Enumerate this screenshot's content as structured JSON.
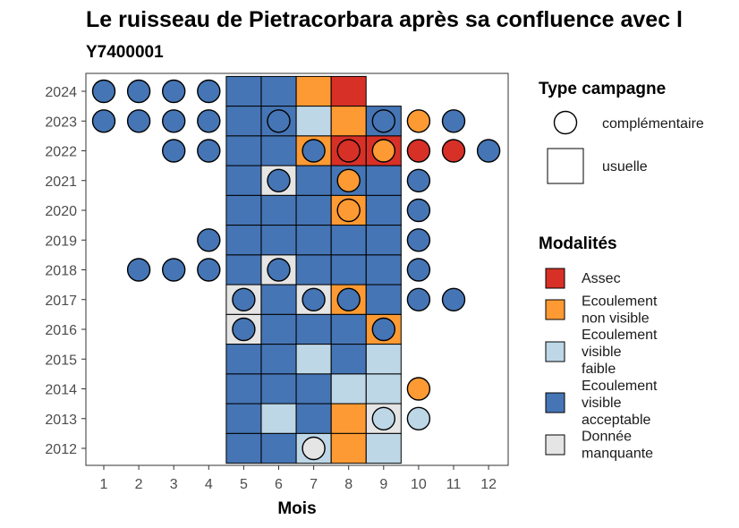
{
  "chart_data": {
    "type": "heatmap",
    "title": "Le ruisseau de Pietracorbara après sa confluence avec l",
    "subtitle": "Y7400001",
    "xlabel": "Mois",
    "ylabel": "",
    "x_ticks": [
      1,
      2,
      3,
      4,
      5,
      6,
      7,
      8,
      9,
      10,
      11,
      12
    ],
    "y_ticks": [
      2012,
      2013,
      2014,
      2015,
      2016,
      2017,
      2018,
      2019,
      2020,
      2021,
      2022,
      2023,
      2024
    ],
    "xlim": [
      0.5,
      12.5
    ],
    "ylim": [
      2011.4,
      2024.6
    ],
    "grid": false,
    "modalities": [
      {
        "key": "assec",
        "label": "Assec",
        "color": "#D73027"
      },
      {
        "key": "ecoulement_non_visible",
        "label": "Ecoulement\nnon visible",
        "color": "#FD9A33"
      },
      {
        "key": "ecoulement_visible_faible",
        "label": "Ecoulement\nvisible\nfaible",
        "color": "#BDD7E7"
      },
      {
        "key": "ecoulement_visible_acceptable",
        "label": "Ecoulement\nvisible\nacceptable",
        "color": "#4575B4"
      },
      {
        "key": "donnee_manquante",
        "label": "Donnée\nmanquante",
        "color": "#E5E5E5"
      }
    ],
    "campaign_types": [
      {
        "key": "complementaire",
        "label": "complémentaire",
        "shape": "circle"
      },
      {
        "key": "usuelle",
        "label": "usuelle",
        "shape": "square"
      }
    ],
    "usuelle": [
      {
        "year": 2024,
        "month": 5,
        "m": "ecoulement_visible_acceptable"
      },
      {
        "year": 2024,
        "month": 6,
        "m": "ecoulement_visible_acceptable"
      },
      {
        "year": 2024,
        "month": 7,
        "m": "ecoulement_non_visible"
      },
      {
        "year": 2024,
        "month": 8,
        "m": "assec"
      },
      {
        "year": 2023,
        "month": 5,
        "m": "ecoulement_visible_acceptable"
      },
      {
        "year": 2023,
        "month": 6,
        "m": "ecoulement_visible_acceptable"
      },
      {
        "year": 2023,
        "month": 7,
        "m": "ecoulement_visible_faible"
      },
      {
        "year": 2023,
        "month": 8,
        "m": "ecoulement_non_visible"
      },
      {
        "year": 2023,
        "month": 9,
        "m": "ecoulement_visible_acceptable"
      },
      {
        "year": 2022,
        "month": 5,
        "m": "ecoulement_visible_acceptable"
      },
      {
        "year": 2022,
        "month": 6,
        "m": "ecoulement_visible_acceptable"
      },
      {
        "year": 2022,
        "month": 7,
        "m": "ecoulement_non_visible"
      },
      {
        "year": 2022,
        "month": 8,
        "m": "assec"
      },
      {
        "year": 2022,
        "month": 9,
        "m": "assec"
      },
      {
        "year": 2021,
        "month": 5,
        "m": "ecoulement_visible_acceptable"
      },
      {
        "year": 2021,
        "month": 6,
        "m": "donnee_manquante"
      },
      {
        "year": 2021,
        "month": 7,
        "m": "ecoulement_visible_acceptable"
      },
      {
        "year": 2021,
        "month": 8,
        "m": "ecoulement_visible_acceptable"
      },
      {
        "year": 2021,
        "month": 9,
        "m": "ecoulement_visible_acceptable"
      },
      {
        "year": 2020,
        "month": 5,
        "m": "ecoulement_visible_acceptable"
      },
      {
        "year": 2020,
        "month": 6,
        "m": "ecoulement_visible_acceptable"
      },
      {
        "year": 2020,
        "month": 7,
        "m": "ecoulement_visible_acceptable"
      },
      {
        "year": 2020,
        "month": 8,
        "m": "ecoulement_non_visible"
      },
      {
        "year": 2020,
        "month": 9,
        "m": "ecoulement_visible_acceptable"
      },
      {
        "year": 2019,
        "month": 5,
        "m": "ecoulement_visible_acceptable"
      },
      {
        "year": 2019,
        "month": 6,
        "m": "ecoulement_visible_acceptable"
      },
      {
        "year": 2019,
        "month": 7,
        "m": "ecoulement_visible_acceptable"
      },
      {
        "year": 2019,
        "month": 8,
        "m": "ecoulement_visible_acceptable"
      },
      {
        "year": 2019,
        "month": 9,
        "m": "ecoulement_visible_acceptable"
      },
      {
        "year": 2018,
        "month": 5,
        "m": "ecoulement_visible_acceptable"
      },
      {
        "year": 2018,
        "month": 6,
        "m": "donnee_manquante"
      },
      {
        "year": 2018,
        "month": 7,
        "m": "ecoulement_visible_acceptable"
      },
      {
        "year": 2018,
        "month": 8,
        "m": "ecoulement_visible_acceptable"
      },
      {
        "year": 2018,
        "month": 9,
        "m": "ecoulement_visible_acceptable"
      },
      {
        "year": 2017,
        "month": 5,
        "m": "donnee_manquante"
      },
      {
        "year": 2017,
        "month": 6,
        "m": "ecoulement_visible_acceptable"
      },
      {
        "year": 2017,
        "month": 7,
        "m": "donnee_manquante"
      },
      {
        "year": 2017,
        "month": 8,
        "m": "ecoulement_non_visible"
      },
      {
        "year": 2017,
        "month": 9,
        "m": "ecoulement_visible_acceptable"
      },
      {
        "year": 2016,
        "month": 5,
        "m": "donnee_manquante"
      },
      {
        "year": 2016,
        "month": 6,
        "m": "ecoulement_visible_acceptable"
      },
      {
        "year": 2016,
        "month": 7,
        "m": "ecoulement_visible_acceptable"
      },
      {
        "year": 2016,
        "month": 8,
        "m": "ecoulement_visible_acceptable"
      },
      {
        "year": 2016,
        "month": 9,
        "m": "ecoulement_non_visible"
      },
      {
        "year": 2015,
        "month": 5,
        "m": "ecoulement_visible_acceptable"
      },
      {
        "year": 2015,
        "month": 6,
        "m": "ecoulement_visible_acceptable"
      },
      {
        "year": 2015,
        "month": 7,
        "m": "ecoulement_visible_faible"
      },
      {
        "year": 2015,
        "month": 8,
        "m": "ecoulement_visible_acceptable"
      },
      {
        "year": 2015,
        "month": 9,
        "m": "ecoulement_visible_faible"
      },
      {
        "year": 2014,
        "month": 5,
        "m": "ecoulement_visible_acceptable"
      },
      {
        "year": 2014,
        "month": 6,
        "m": "ecoulement_visible_acceptable"
      },
      {
        "year": 2014,
        "month": 7,
        "m": "ecoulement_visible_acceptable"
      },
      {
        "year": 2014,
        "month": 8,
        "m": "ecoulement_visible_faible"
      },
      {
        "year": 2014,
        "month": 9,
        "m": "ecoulement_visible_faible"
      },
      {
        "year": 2013,
        "month": 5,
        "m": "ecoulement_visible_acceptable"
      },
      {
        "year": 2013,
        "month": 6,
        "m": "ecoulement_visible_faible"
      },
      {
        "year": 2013,
        "month": 7,
        "m": "ecoulement_visible_acceptable"
      },
      {
        "year": 2013,
        "month": 8,
        "m": "ecoulement_non_visible"
      },
      {
        "year": 2013,
        "month": 9,
        "m": "donnee_manquante"
      },
      {
        "year": 2012,
        "month": 5,
        "m": "ecoulement_visible_acceptable"
      },
      {
        "year": 2012,
        "month": 6,
        "m": "ecoulement_visible_acceptable"
      },
      {
        "year": 2012,
        "month": 7,
        "m": "ecoulement_visible_faible"
      },
      {
        "year": 2012,
        "month": 8,
        "m": "ecoulement_non_visible"
      },
      {
        "year": 2012,
        "month": 9,
        "m": "ecoulement_visible_faible"
      }
    ],
    "complementaire": [
      {
        "year": 2024,
        "month": 1,
        "m": "ecoulement_visible_acceptable"
      },
      {
        "year": 2024,
        "month": 2,
        "m": "ecoulement_visible_acceptable"
      },
      {
        "year": 2024,
        "month": 3,
        "m": "ecoulement_visible_acceptable"
      },
      {
        "year": 2024,
        "month": 4,
        "m": "ecoulement_visible_acceptable"
      },
      {
        "year": 2023,
        "month": 1,
        "m": "ecoulement_visible_acceptable"
      },
      {
        "year": 2023,
        "month": 2,
        "m": "ecoulement_visible_acceptable"
      },
      {
        "year": 2023,
        "month": 3,
        "m": "ecoulement_visible_acceptable"
      },
      {
        "year": 2023,
        "month": 4,
        "m": "ecoulement_visible_acceptable"
      },
      {
        "year": 2023,
        "month": 6,
        "m": "ecoulement_visible_acceptable"
      },
      {
        "year": 2023,
        "month": 9,
        "m": "ecoulement_visible_acceptable"
      },
      {
        "year": 2023,
        "month": 10,
        "m": "ecoulement_non_visible"
      },
      {
        "year": 2023,
        "month": 11,
        "m": "ecoulement_visible_acceptable"
      },
      {
        "year": 2022,
        "month": 3,
        "m": "ecoulement_visible_acceptable"
      },
      {
        "year": 2022,
        "month": 4,
        "m": "ecoulement_visible_acceptable"
      },
      {
        "year": 2022,
        "month": 7,
        "m": "ecoulement_visible_acceptable"
      },
      {
        "year": 2022,
        "month": 8,
        "m": "assec"
      },
      {
        "year": 2022,
        "month": 9,
        "m": "ecoulement_non_visible"
      },
      {
        "year": 2022,
        "month": 10,
        "m": "assec"
      },
      {
        "year": 2022,
        "month": 11,
        "m": "assec"
      },
      {
        "year": 2022,
        "month": 12,
        "m": "ecoulement_visible_acceptable"
      },
      {
        "year": 2021,
        "month": 6,
        "m": "ecoulement_visible_acceptable"
      },
      {
        "year": 2021,
        "month": 8,
        "m": "ecoulement_non_visible"
      },
      {
        "year": 2021,
        "month": 10,
        "m": "ecoulement_visible_acceptable"
      },
      {
        "year": 2020,
        "month": 8,
        "m": "ecoulement_non_visible"
      },
      {
        "year": 2020,
        "month": 10,
        "m": "ecoulement_visible_acceptable"
      },
      {
        "year": 2019,
        "month": 4,
        "m": "ecoulement_visible_acceptable"
      },
      {
        "year": 2019,
        "month": 10,
        "m": "ecoulement_visible_acceptable"
      },
      {
        "year": 2018,
        "month": 2,
        "m": "ecoulement_visible_acceptable"
      },
      {
        "year": 2018,
        "month": 3,
        "m": "ecoulement_visible_acceptable"
      },
      {
        "year": 2018,
        "month": 4,
        "m": "ecoulement_visible_acceptable"
      },
      {
        "year": 2018,
        "month": 6,
        "m": "ecoulement_visible_acceptable"
      },
      {
        "year": 2018,
        "month": 10,
        "m": "ecoulement_visible_acceptable"
      },
      {
        "year": 2017,
        "month": 5,
        "m": "ecoulement_visible_acceptable"
      },
      {
        "year": 2017,
        "month": 7,
        "m": "ecoulement_visible_acceptable"
      },
      {
        "year": 2017,
        "month": 8,
        "m": "ecoulement_visible_acceptable"
      },
      {
        "year": 2017,
        "month": 10,
        "m": "ecoulement_visible_acceptable"
      },
      {
        "year": 2017,
        "month": 11,
        "m": "ecoulement_visible_acceptable"
      },
      {
        "year": 2016,
        "month": 5,
        "m": "ecoulement_visible_acceptable"
      },
      {
        "year": 2016,
        "month": 9,
        "m": "ecoulement_visible_acceptable"
      },
      {
        "year": 2014,
        "month": 10,
        "m": "ecoulement_non_visible"
      },
      {
        "year": 2013,
        "month": 9,
        "m": "ecoulement_visible_faible"
      },
      {
        "year": 2013,
        "month": 10,
        "m": "ecoulement_visible_faible"
      },
      {
        "year": 2012,
        "month": 7,
        "m": "donnee_manquante"
      }
    ],
    "legend": {
      "campaign_title": "Type campagne",
      "modality_title": "Modalités",
      "position": "right"
    }
  }
}
